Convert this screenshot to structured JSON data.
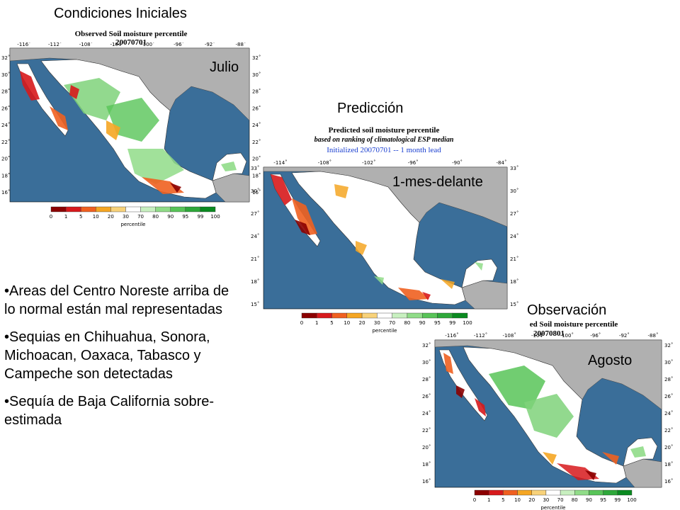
{
  "headings": {
    "initial": "Condiciones Iniciales",
    "prediction": "Predicción",
    "observation": "Observación"
  },
  "maps": {
    "initial": {
      "title": "Observed Soil moisture percentile",
      "date": "20070701",
      "overlay": "Julio",
      "lon_labels": [
        "-116˚",
        "-112˚",
        "-108˚",
        "-104˚",
        "-100˚",
        "-96˚",
        "-92˚",
        "-88˚"
      ],
      "lat_labels": [
        "32˚",
        "30˚",
        "28˚",
        "26˚",
        "24˚",
        "22˚",
        "20˚",
        "18˚",
        "16˚"
      ]
    },
    "prediction": {
      "title": "Predicted soil moisture percentile",
      "subtitle": "based on ranking of climatological ESP median",
      "init_line": "Initialized 20070701 -- 1 month lead",
      "overlay": "1-mes-delante",
      "lon_labels": [
        "-114˚",
        "-108˚",
        "-102˚",
        "-96˚",
        "-90˚",
        "-84˚"
      ],
      "lat_labels": [
        "33˚",
        "30˚",
        "27˚",
        "24˚",
        "21˚",
        "18˚",
        "15˚"
      ]
    },
    "observation": {
      "title": "ed Soil moisture percentile",
      "date": "20070801",
      "overlay": "Agosto",
      "lon_labels": [
        "-116˚",
        "-112˚",
        "-108˚",
        "-104˚",
        "-100˚",
        "-96˚",
        "-92˚",
        "-88˚"
      ],
      "lat_labels": [
        "32˚",
        "30˚",
        "28˚",
        "26˚",
        "24˚",
        "22˚",
        "20˚",
        "18˚",
        "16˚"
      ]
    }
  },
  "colorbar": {
    "labels": [
      "0",
      "1",
      "5",
      "10",
      "20",
      "30",
      "70",
      "80",
      "90",
      "95",
      "99",
      "100"
    ],
    "colors": [
      "#8b0000",
      "#d7191c",
      "#f06020",
      "#f5a623",
      "#f8d27a",
      "#ffffff",
      "#c8f0c0",
      "#90dc88",
      "#58c458",
      "#2ea83a",
      "#0a8a20"
    ],
    "caption": "percentile"
  },
  "colors": {
    "ocean": "#3a6e99",
    "land_other": "#b0b0b0",
    "mexico_land": "#ffffff"
  },
  "notes": [
    "Areas del Centro Noreste arriba de lo normal están mal representadas",
    "Sequias en Chihuahua, Sonora, Michoacan, Oaxaca, Tabasco y Campeche son detectadas",
    "Sequía de Baja California sobre-estimada"
  ]
}
